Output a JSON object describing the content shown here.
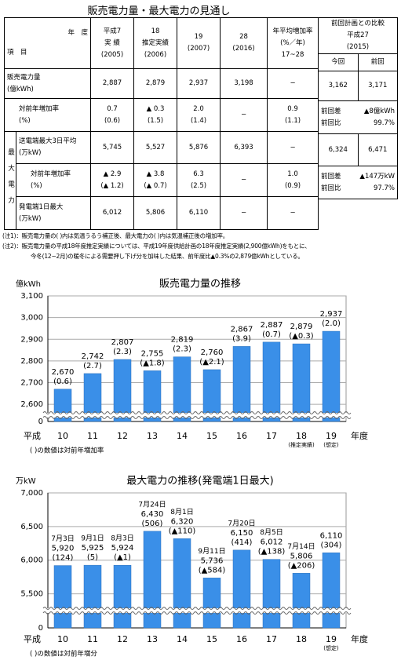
{
  "title": "販売電力量・最大電力の見通し",
  "table": {
    "corner": [
      "年　度",
      "項　目"
    ],
    "columns": [
      [
        "平成7",
        "実 績",
        "(2005)"
      ],
      [
        "18",
        "推定実績",
        "(2006)"
      ],
      [
        "19",
        "(2007)"
      ],
      [
        "28",
        "(2016)"
      ],
      [
        "年平均増加率",
        "(%／年)",
        "17~28"
      ]
    ],
    "comparison_header": [
      "前回計画との比較",
      "平成27",
      "(2015)"
    ],
    "comparison_columns": [
      "今回",
      "前回"
    ],
    "group_label": "最大電力",
    "rows": [
      {
        "label": [
          "販売電力量",
          "(億kWh)"
        ],
        "cells": [
          [
            "2,887"
          ],
          [
            "2,879"
          ],
          [
            "2,937"
          ],
          [
            "3,198"
          ],
          [
            "−"
          ]
        ],
        "comparison": [
          [
            "3,162"
          ],
          [
            "3,171"
          ]
        ]
      },
      {
        "label": [
          "対前年増加率",
          "(%)"
        ],
        "cells": [
          [
            "0.7",
            "(0.6)"
          ],
          [
            "▲ 0.3",
            "(1.5)"
          ],
          [
            "2.0",
            "(1.4)"
          ],
          [
            "−"
          ],
          [
            "0.9",
            "(1.1)"
          ]
        ],
        "comparison_diff": [
          [
            "前回差",
            "▲8億kWh"
          ],
          [
            "前回比",
            "99.7%"
          ]
        ]
      },
      {
        "label": [
          "送電端最大3日平均",
          "(万kW)"
        ],
        "cells": [
          [
            "5,745"
          ],
          [
            "5,527"
          ],
          [
            "5,876"
          ],
          [
            "6,393"
          ],
          [
            "−"
          ]
        ],
        "comparison": [
          [
            "6,324"
          ],
          [
            "6,471"
          ]
        ]
      },
      {
        "label": [
          "対前年増加率",
          "(%)"
        ],
        "cells": [
          [
            "▲ 2.9",
            "(▲ 1.2)"
          ],
          [
            "▲ 3.8",
            "(▲ 0.7)"
          ],
          [
            "6.3",
            "(2.5)"
          ],
          [
            "−"
          ],
          [
            "1.0",
            "(0.9)"
          ]
        ],
        "comparison_diff": [
          [
            "前回差",
            "▲147万kW"
          ],
          [
            "前回比",
            "97.7%"
          ]
        ]
      },
      {
        "label": [
          "発電端1日最大",
          "(万kW)"
        ],
        "cells": [
          [
            "6,012"
          ],
          [
            "5,806"
          ],
          [
            "6,110"
          ],
          [
            "−"
          ],
          [
            "−"
          ]
        ]
      }
    ]
  },
  "notes": [
    "(注1)：販売電力量の( )内は気温うるう補正後、最大電力の( )内は気温補正後の増加率。",
    "(注2)：販売電力量の平成18年度推定実績については、平成19年度供給計画の18年度推定実績(2,900億kWh)をもとに、",
    "今冬(12~2月)の暖冬による需要押し下げ分を加味した結果、前年度比▲0.3%の2,879億kWhとしている。"
  ],
  "chart_data": [
    {
      "type": "bar",
      "title": "販売電力量の推移",
      "y_label": "億kWh",
      "x_prefix": "平成",
      "x_suffix": "年度",
      "categories": [
        "10",
        "11",
        "12",
        "13",
        "14",
        "15",
        "16",
        "17",
        "18",
        "19"
      ],
      "category_notes": [
        null,
        null,
        null,
        null,
        null,
        null,
        null,
        null,
        "(推定実績)",
        "(想定)"
      ],
      "values": [
        2670,
        2742,
        2807,
        2755,
        2819,
        2760,
        2867,
        2887,
        2879,
        2937
      ],
      "value_labels": [
        "2,670",
        "2,742",
        "2,807",
        "2,755",
        "2,819",
        "2,760",
        "2,867",
        "2,887",
        "2,879",
        "2,937"
      ],
      "change_labels": [
        "(0.6)",
        "(2.7)",
        "(2.3)",
        "(▲1.8)",
        "(2.3)",
        "(▲2.1)",
        "(3.9)",
        "(0.7)",
        "(▲0.3)",
        "(2.0)"
      ],
      "color": "#3a8fe8",
      "ylim": [
        0,
        3100
      ],
      "yticks": [
        0,
        {
          "value": 2600,
          "label": "2,600"
        },
        {
          "value": 2700,
          "label": "2,700"
        },
        {
          "value": 2800,
          "label": "2,800"
        },
        {
          "value": 2900,
          "label": "2,900"
        },
        {
          "value": 3000,
          "label": "3,000"
        },
        {
          "value": 3100,
          "label": "3,100"
        }
      ],
      "axis_break": true,
      "grid": true,
      "note": "( )の数値は対前年増加率"
    },
    {
      "type": "bar",
      "title": "最大電力の推移(発電端1日最大)",
      "y_label": "万kW",
      "x_prefix": "平成",
      "x_suffix": "年度",
      "categories": [
        "10",
        "11",
        "12",
        "13",
        "14",
        "15",
        "16",
        "17",
        "18",
        "19"
      ],
      "category_notes": [
        null,
        null,
        null,
        null,
        null,
        null,
        null,
        null,
        null,
        "(想定)"
      ],
      "date_labels": [
        "7月3日",
        "9月1日",
        "8月3日",
        "7月24日",
        "8月1日",
        "9月11日",
        "7月20日",
        "8月5日",
        "7月14日",
        null
      ],
      "values": [
        5920,
        5925,
        5924,
        6430,
        6320,
        5736,
        6150,
        6012,
        5806,
        6110
      ],
      "value_labels": [
        "5,920",
        "5,925",
        "5,924",
        "6,430",
        "6,320",
        "5,736",
        "6,150",
        "6,012",
        "5,806",
        "6,110"
      ],
      "change_labels": [
        "(124)",
        "(5)",
        "(▲1)",
        "(506)",
        "(▲110)",
        "(▲584)",
        "(414)",
        "(▲138)",
        "(▲206)",
        "(304)"
      ],
      "color": "#3a8fe8",
      "ylim": [
        0,
        7000
      ],
      "yticks": [
        0,
        {
          "value": 5500,
          "label": "5,500"
        },
        {
          "value": 6000,
          "label": "6,000"
        },
        {
          "value": 6500,
          "label": "6,500"
        },
        {
          "value": 7000,
          "label": "7,000"
        }
      ],
      "axis_break": true,
      "grid": true,
      "note": "( )の数値は対前年増分"
    }
  ]
}
